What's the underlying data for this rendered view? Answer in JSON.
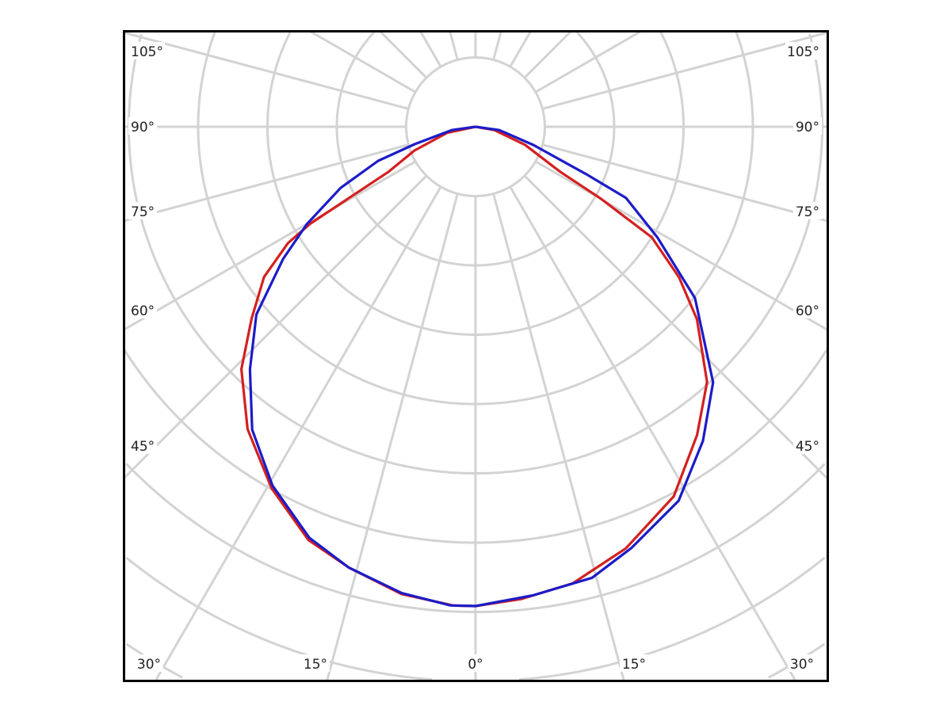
{
  "chart_data": {
    "type": "polar",
    "title": "",
    "angle_unit": "degrees",
    "angle_zero": "bottom",
    "radial_grid_rings": 12,
    "radial_lines_every_deg": 15,
    "grid": true,
    "radial_value_unit": "relative intensity (% of 0° value)",
    "tick_labels": {
      "left": [
        "105°",
        "90°",
        "75°",
        "60°",
        "45°"
      ],
      "right": [
        "105°",
        "90°",
        "75°",
        "60°",
        "45°"
      ],
      "bottom": [
        "30°",
        "15°",
        "0°",
        "15°",
        "30°"
      ]
    },
    "series": [
      {
        "color": "#d42020",
        "left": [
          [
            0,
            100
          ],
          [
            2.6,
            100
          ],
          [
            9,
            98.7
          ],
          [
            16,
            95.7
          ],
          [
            22,
            93
          ],
          [
            29.4,
            86.6
          ],
          [
            37,
            79
          ],
          [
            44,
            70.3
          ],
          [
            49.4,
            61.5
          ],
          [
            54.6,
            54.1
          ],
          [
            58.2,
            46
          ],
          [
            59.6,
            40
          ],
          [
            60.6,
            30.4
          ],
          [
            62.6,
            20.5
          ],
          [
            68.7,
            13.7
          ],
          [
            78,
            6
          ],
          [
            90,
            0
          ]
        ],
        "right": [
          [
            0,
            100
          ],
          [
            5.5,
            99
          ],
          [
            12,
            97.4
          ],
          [
            19.6,
            93.4
          ],
          [
            28.2,
            87.5
          ],
          [
            35.7,
            79.2
          ],
          [
            42.2,
            71.9
          ],
          [
            49,
            61.2
          ],
          [
            53.5,
            52.8
          ],
          [
            57.9,
            43.4
          ],
          [
            60.2,
            29.9
          ],
          [
            62,
            20
          ],
          [
            70,
            11
          ],
          [
            80,
            4
          ],
          [
            90,
            0
          ]
        ]
      },
      {
        "color": "#1c1cc8",
        "left": [
          [
            0,
            100
          ],
          [
            3,
            100
          ],
          [
            9,
            98.5
          ],
          [
            16,
            95.7
          ],
          [
            22,
            92.5
          ],
          [
            29.5,
            86
          ],
          [
            36.4,
            78.5
          ],
          [
            42.9,
            69.1
          ],
          [
            49.4,
            60.2
          ],
          [
            55.5,
            48.7
          ],
          [
            60,
            40.6
          ],
          [
            65.6,
            30.9
          ],
          [
            70.7,
            21.5
          ],
          [
            74,
            13.2
          ],
          [
            82,
            5
          ],
          [
            90,
            0
          ]
        ],
        "right": [
          [
            0,
            100
          ],
          [
            7,
            98.5
          ],
          [
            14.5,
            97.2
          ],
          [
            20.3,
            93.7
          ],
          [
            28.5,
            88.8
          ],
          [
            35.9,
            80.9
          ],
          [
            42.9,
            72.8
          ],
          [
            52,
            58.1
          ],
          [
            58.7,
            44.4
          ],
          [
            64.7,
            34.7
          ],
          [
            66.8,
            25.1
          ],
          [
            72.5,
            12.7
          ],
          [
            82,
            5
          ],
          [
            90,
            0
          ]
        ]
      }
    ],
    "colors": {
      "grid": "#d3d3d3",
      "frame": "#000000",
      "label": "#222222"
    }
  }
}
